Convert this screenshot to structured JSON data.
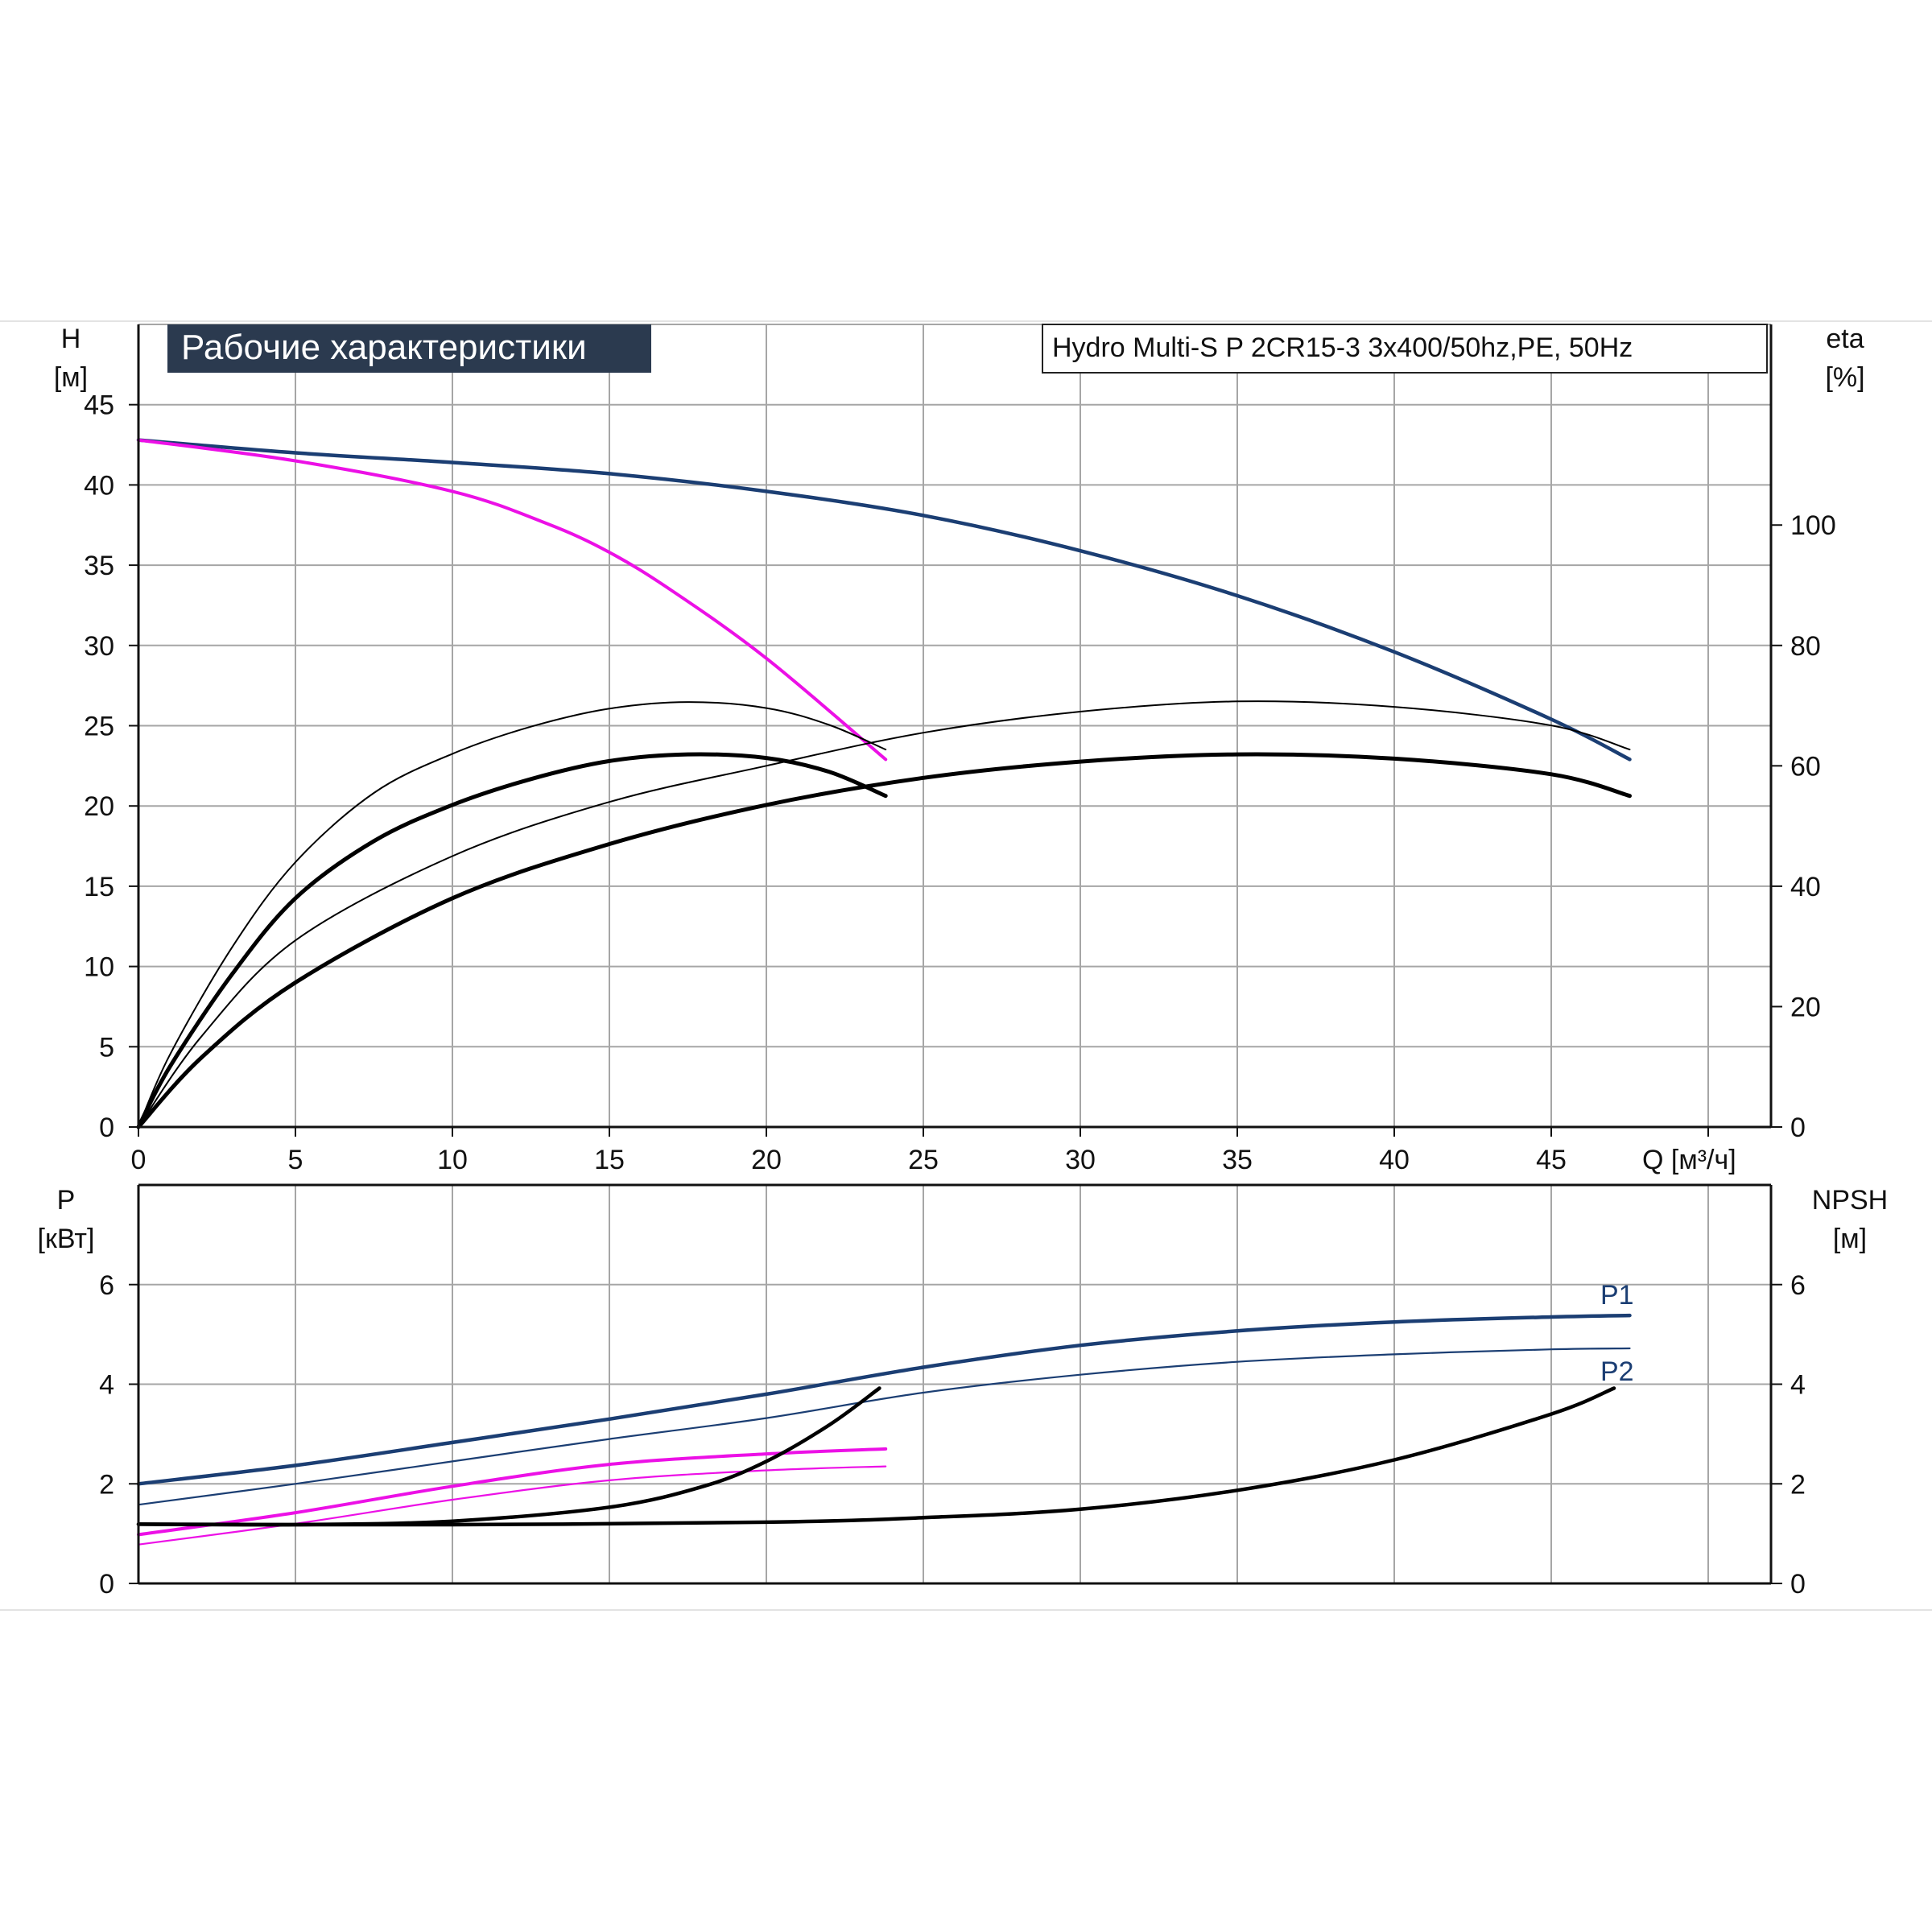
{
  "banner": {
    "title": "Рабочие характеристики",
    "bg": "#2b3a4f",
    "fg": "#ffffff"
  },
  "model_label": "Hydro Multi-S P 2CR15-3 3x400/50hz,PE, 50Hz",
  "colors": {
    "navy": "#1b3e73",
    "magenta": "#ec10e6",
    "black": "#000000",
    "grid": "#a6a6a6"
  },
  "chart_data": [
    {
      "type": "line",
      "name": "head-efficiency",
      "xlabel": "Q [м³/ч]",
      "ylabel": "H",
      "ylabel_unit": "[м]",
      "y2label": "eta",
      "y2label_unit": "[%]",
      "xlim": [
        0,
        52
      ],
      "ylim": [
        0,
        50
      ],
      "y2lim": [
        0,
        133.33
      ],
      "x_ticks": [
        0,
        5,
        10,
        15,
        20,
        25,
        30,
        35,
        40,
        45
      ],
      "y_ticks": [
        0,
        5,
        10,
        15,
        20,
        25,
        30,
        35,
        40,
        45
      ],
      "y2_ticks": [
        0,
        20,
        40,
        60,
        80,
        100
      ],
      "grid": true,
      "series": [
        {
          "color": "#1b3e73",
          "width": 4.5,
          "axis": "y",
          "x": [
            0,
            5,
            10,
            15,
            20,
            25,
            30,
            35,
            40,
            45,
            47.5
          ],
          "y": [
            42.8,
            42.0,
            41.4,
            40.7,
            39.6,
            38.1,
            35.9,
            33.1,
            29.6,
            25.4,
            22.9
          ]
        },
        {
          "color": "#ec10e6",
          "width": 4,
          "axis": "y",
          "x": [
            0,
            5,
            10,
            13,
            15,
            17,
            20,
            23.8
          ],
          "y": [
            42.8,
            41.5,
            39.6,
            37.6,
            35.8,
            33.4,
            29.2,
            22.9
          ]
        },
        {
          "color": "#000000",
          "width": 2,
          "axis": "y2",
          "x": [
            0,
            1,
            3,
            5,
            7.5,
            10,
            12.5,
            15,
            17.5,
            20,
            22,
            23.8
          ],
          "y": [
            0,
            12,
            30,
            44,
            55.5,
            62,
            66.5,
            69.5,
            70.6,
            69.6,
            66.8,
            62.7
          ]
        },
        {
          "color": "#000000",
          "width": 5,
          "axis": "y2",
          "x": [
            0,
            1,
            3,
            5,
            7.5,
            10,
            12.5,
            15,
            17.5,
            20,
            22,
            23.8
          ],
          "y": [
            0,
            10,
            25.5,
            38,
            47.5,
            53.5,
            57.8,
            60.8,
            61.9,
            61.3,
            59,
            55
          ]
        },
        {
          "color": "#000000",
          "width": 2,
          "axis": "y2",
          "x": [
            0,
            2,
            5,
            10,
            15,
            20,
            25,
            30,
            35,
            40,
            45,
            47.5
          ],
          "y": [
            0,
            15,
            31,
            45,
            54,
            60,
            65.5,
            69,
            70.7,
            69.8,
            66.7,
            62.7
          ]
        },
        {
          "color": "#000000",
          "width": 5,
          "axis": "y2",
          "x": [
            0,
            2,
            5,
            10,
            15,
            20,
            25,
            30,
            35,
            40,
            45,
            47.5
          ],
          "y": [
            0,
            11.5,
            24,
            38,
            47,
            53.5,
            58,
            60.7,
            61.9,
            61.2,
            58.6,
            55
          ]
        }
      ]
    },
    {
      "type": "line",
      "name": "power-npsh",
      "xlabel": "Q [м³/ч]",
      "ylabel": "P",
      "ylabel_unit": "[кВт]",
      "y2label": "NPSH",
      "y2label_unit": "[м]",
      "xlim": [
        0,
        52
      ],
      "ylim": [
        0,
        8
      ],
      "y2lim": [
        0,
        8
      ],
      "y_ticks": [
        0,
        2,
        4,
        6
      ],
      "y2_ticks": [
        0,
        2,
        4,
        6
      ],
      "grid": true,
      "series": [
        {
          "name": "P1",
          "color": "#1b3e73",
          "width": 4.5,
          "axis": "y",
          "x": [
            0,
            5,
            10,
            15,
            20,
            25,
            30,
            35,
            40,
            45,
            47.5
          ],
          "y": [
            2.0,
            2.37,
            2.83,
            3.3,
            3.8,
            4.34,
            4.78,
            5.07,
            5.25,
            5.35,
            5.38
          ]
        },
        {
          "color": "#1b3e73",
          "width": 2.2,
          "axis": "y",
          "x": [
            0,
            5,
            10,
            15,
            20,
            25,
            30,
            35,
            40,
            45,
            47.5
          ],
          "y": [
            1.58,
            2.0,
            2.45,
            2.9,
            3.32,
            3.83,
            4.19,
            4.45,
            4.6,
            4.7,
            4.72
          ]
        },
        {
          "color": "#ec10e6",
          "width": 4,
          "axis": "y",
          "x": [
            0,
            5,
            10,
            15,
            20,
            23.8
          ],
          "y": [
            0.98,
            1.42,
            1.95,
            2.39,
            2.6,
            2.7
          ]
        },
        {
          "color": "#ec10e6",
          "width": 2.2,
          "axis": "y",
          "x": [
            0,
            5,
            10,
            15,
            20,
            23.8
          ],
          "y": [
            0.78,
            1.2,
            1.68,
            2.07,
            2.27,
            2.35
          ]
        },
        {
          "color": "#000000",
          "width": 4.5,
          "axis": "y2",
          "x": [
            0,
            5,
            10,
            15,
            18,
            20,
            22,
            23.6
          ],
          "y": [
            1.19,
            1.18,
            1.25,
            1.53,
            1.95,
            2.45,
            3.18,
            3.92
          ]
        },
        {
          "name": "P2",
          "color": "#000000",
          "width": 4.5,
          "axis": "y2",
          "x": [
            0,
            10,
            20,
            25,
            30,
            35,
            40,
            45,
            47
          ],
          "y": [
            1.19,
            1.18,
            1.23,
            1.32,
            1.49,
            1.87,
            2.48,
            3.4,
            3.92
          ]
        }
      ],
      "annotations": [
        "P1",
        "P2"
      ]
    }
  ]
}
